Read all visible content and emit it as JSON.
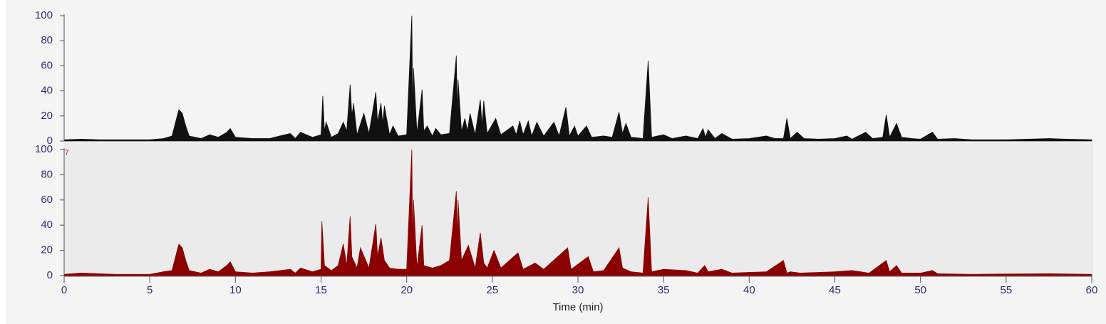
{
  "chart_data": [
    {
      "type": "area",
      "color": "#111111",
      "background": "#f4f4f4",
      "xlim": [
        0,
        60
      ],
      "ylim": [
        0,
        100
      ],
      "yticks": [
        0,
        20,
        40,
        60,
        80,
        100
      ],
      "x": [
        0,
        1,
        2,
        3,
        4,
        5,
        5.8,
        6.3,
        6.6,
        6.7,
        6.9,
        7.1,
        7.3,
        8,
        8.5,
        9,
        9.5,
        9.7,
        10,
        11,
        12,
        13.2,
        13.5,
        13.8,
        14.5,
        15,
        15.1,
        15.2,
        15.3,
        15.6,
        16,
        16.3,
        16.5,
        16.7,
        16.8,
        16.9,
        17.1,
        17.5,
        17.8,
        18.2,
        18.3,
        18.5,
        18.6,
        18.7,
        19,
        19.2,
        19.5,
        20,
        20.3,
        20.35,
        20.4,
        20.6,
        20.9,
        21,
        21.2,
        21.5,
        21.7,
        22,
        22.5,
        22.9,
        22.95,
        23,
        23.2,
        23.4,
        23.55,
        23.7,
        24,
        24.3,
        24.4,
        24.5,
        24.7,
        25.2,
        25.5,
        26.2,
        26.4,
        26.6,
        26.8,
        27.1,
        27.3,
        27.6,
        28,
        28.6,
        28.9,
        29.3,
        29.5,
        29.8,
        30,
        30.5,
        30.8,
        31.5,
        32,
        32.4,
        32.6,
        32.8,
        33.1,
        33.8,
        34.1,
        34.3,
        35,
        35.5,
        36.3,
        37,
        37.3,
        37.45,
        37.6,
        38,
        38.4,
        39,
        40,
        41,
        41.5,
        42,
        42.2,
        42.4,
        42.8,
        43.2,
        44,
        45,
        45.7,
        46,
        46.8,
        47.2,
        47.8,
        48,
        48.2,
        48.6,
        48.9,
        49.5,
        50,
        50.7,
        51,
        52,
        53,
        55,
        57.5,
        58.5,
        60
      ],
      "values": [
        1,
        1.5,
        1,
        1,
        1,
        1,
        2,
        4,
        20,
        25,
        22,
        12,
        4,
        2,
        5,
        3,
        7,
        10,
        3,
        2,
        2,
        6,
        2,
        7,
        3,
        5,
        36,
        8,
        15,
        3,
        6,
        15,
        8,
        45,
        20,
        30,
        5,
        22,
        6,
        39,
        15,
        30,
        14,
        28,
        5,
        12,
        4,
        5,
        100,
        20,
        58,
        6,
        41,
        8,
        12,
        4,
        10,
        5,
        6,
        68,
        20,
        49,
        8,
        18,
        8,
        22,
        5,
        33,
        12,
        32,
        6,
        18,
        5,
        12,
        5,
        16,
        5,
        16,
        4,
        15,
        4,
        15,
        4,
        27,
        4,
        12,
        4,
        12,
        3,
        4,
        3,
        23,
        6,
        14,
        3,
        2,
        64,
        3,
        5,
        2,
        4,
        2,
        10,
        3,
        9,
        2,
        6,
        1.5,
        2,
        4,
        2,
        2,
        18,
        2,
        7,
        2,
        1.5,
        2,
        4,
        1.5,
        7,
        2,
        3,
        21,
        3,
        14,
        3,
        2,
        1.5,
        7,
        1.5,
        2,
        1,
        1,
        2,
        1.5,
        1
      ]
    },
    {
      "type": "area",
      "color": "#8b0000",
      "background": "#ebebeb",
      "annotation": "7",
      "xlim": [
        0,
        60
      ],
      "ylim": [
        0,
        100
      ],
      "yticks": [
        0,
        20,
        40,
        60,
        80,
        100
      ],
      "xticks": [
        0,
        5,
        10,
        15,
        20,
        25,
        30,
        35,
        40,
        45,
        50,
        55,
        60
      ],
      "xlabel": "Time (min)",
      "x": [
        0,
        1,
        2,
        3,
        4,
        5,
        5.8,
        6.3,
        6.6,
        6.7,
        6.9,
        7.1,
        7.3,
        8,
        8.5,
        9,
        9.5,
        9.7,
        10,
        11,
        12,
        13.2,
        13.5,
        13.8,
        14.5,
        15,
        15.05,
        15.2,
        15.6,
        16,
        16.3,
        16.5,
        16.7,
        16.8,
        17.1,
        17.3,
        17.8,
        18.2,
        18.3,
        18.5,
        18.7,
        19,
        19.5,
        20,
        20.3,
        20.35,
        20.4,
        20.6,
        20.9,
        21,
        21.5,
        22,
        22.5,
        22.9,
        22.95,
        23,
        23.2,
        23.6,
        24,
        24.3,
        24.5,
        24.7,
        25.1,
        25.5,
        26.5,
        26.8,
        27.5,
        28,
        29.4,
        29.6,
        30.6,
        30.9,
        31.5,
        32.4,
        32.6,
        33.1,
        33.8,
        34.1,
        34.3,
        35,
        36.3,
        37,
        37.4,
        37.6,
        38.4,
        39,
        41,
        42,
        42.2,
        42.4,
        43,
        45,
        46,
        47,
        48,
        48.2,
        48.6,
        48.9,
        50,
        50.7,
        51,
        53,
        57.5,
        60
      ],
      "values": [
        1,
        2,
        1.5,
        1,
        1,
        1,
        3,
        4,
        20,
        25,
        22,
        12,
        4,
        2,
        5,
        3,
        8,
        11,
        3,
        2,
        3,
        5,
        2,
        6,
        3,
        5,
        43,
        8,
        4,
        8,
        25,
        8,
        47,
        15,
        6,
        22,
        6,
        41,
        15,
        30,
        12,
        6,
        5,
        5,
        100,
        20,
        60,
        6,
        40,
        8,
        6,
        8,
        12,
        67,
        25,
        60,
        12,
        24,
        6,
        34,
        10,
        6,
        20,
        6,
        18,
        5,
        10,
        5,
        22,
        5,
        15,
        3,
        4,
        22,
        6,
        3,
        2,
        62,
        3,
        5,
        4,
        2,
        8,
        3,
        5,
        2,
        3,
        12,
        2,
        3,
        2,
        3,
        4,
        2,
        12,
        3,
        8,
        2,
        2,
        4,
        1.5,
        1,
        1.5,
        1
      ]
    }
  ]
}
